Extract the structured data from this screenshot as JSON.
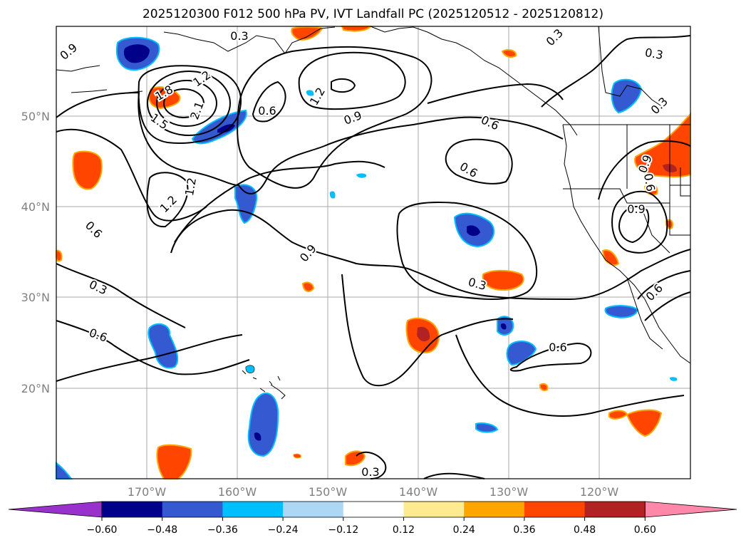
{
  "title": "2025120300 F012 500 hPa PV, IVT Landfall PC (2025120512 - 2025120812)",
  "map": {
    "lat_labels": [
      "50°N",
      "40°N",
      "30°N",
      "20°N"
    ],
    "lon_labels": [
      "170°W",
      "160°W",
      "150°W",
      "140°W",
      "130°W",
      "120°W"
    ],
    "contour_labels": [
      "0.9",
      "1.2",
      "0.3",
      "1.2",
      "1.5",
      "2.1",
      "1.8",
      "0.6",
      "1.2",
      "0.9",
      "0.6",
      "0.6",
      "0.3",
      "0.9",
      "1.2",
      "0.6",
      "0.6",
      "0.3",
      "0.3",
      "0.3",
      "0.6",
      "0.3",
      "0.3",
      "0.9",
      "0.6",
      "0.9",
      "0.6",
      "0.3"
    ],
    "colors": {
      "neg_strong": "#00008b",
      "neg_mid": "#3559d0",
      "neg_light": "#00bfff",
      "pos_light": "#ffa500",
      "pos_mid": "#ff4500",
      "pos_strong": "#b22222"
    }
  },
  "colorbar": {
    "ticks": [
      "−0.60",
      "−0.48",
      "−0.36",
      "−0.24",
      "−0.12",
      "0.12",
      "0.24",
      "0.36",
      "0.48",
      "0.60"
    ],
    "colors": [
      "#9932cc",
      "#00008b",
      "#3559d0",
      "#00bfff",
      "#add8f5",
      "#ffffff",
      "#ffeb8f",
      "#ffa500",
      "#ff4500",
      "#b22222",
      "#ff88aa"
    ]
  }
}
